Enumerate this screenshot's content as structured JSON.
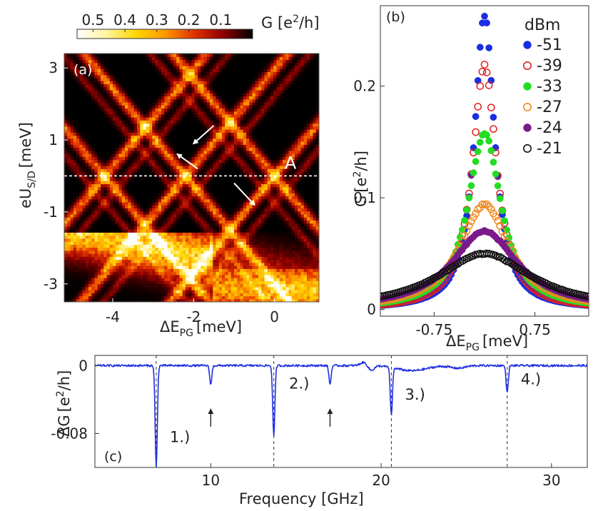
{
  "chart_data": [
    {
      "panel": "(a)",
      "type": "heatmap",
      "xlabel": {
        "main": "ΔE",
        "sub": "PG",
        "unit": "[meV]"
      },
      "ylabel": {
        "main": "eU",
        "sub": "S/D",
        "unit": "[meV]"
      },
      "xlim": [
        -5.2,
        1.1
      ],
      "ylim": [
        -3.5,
        3.4
      ],
      "xticks": [
        -4,
        -2,
        0
      ],
      "xtick_labels": [
        "-4",
        "-2",
        "0"
      ],
      "yticks": [
        3,
        1,
        -1,
        -3
      ],
      "ytick_labels": [
        "3",
        "1",
        "-1",
        "-3"
      ],
      "colorbar": {
        "label": "G [e",
        "label_sup": "2",
        "label_end": "/h]",
        "ticks": [
          0.5,
          0.4,
          0.3,
          0.2,
          0.1
        ],
        "tick_labels": [
          "0.5",
          "0.4",
          "0.3",
          "0.2",
          "0.1"
        ],
        "range": [
          0.55,
          0.0
        ],
        "colormap": [
          "#ffffff",
          "#fff5a0",
          "#ffd700",
          "#ff9a00",
          "#e03000",
          "#900000",
          "#000000"
        ]
      },
      "cut_line_y": 0,
      "annotation": "A",
      "diamond_crossings_x": [
        -4.2,
        -2.2,
        0.0
      ],
      "arrows": [
        {
          "from": [
            -1.5,
            1.4
          ],
          "to": [
            -2.0,
            0.9
          ]
        },
        {
          "from": [
            -1.9,
            0.2
          ],
          "to": [
            -2.4,
            0.6
          ]
        },
        {
          "from": [
            -1.0,
            -0.2
          ],
          "to": [
            -0.5,
            -0.8
          ]
        }
      ]
    },
    {
      "panel": "(b)",
      "type": "scatter",
      "xlabel": {
        "main": "ΔE",
        "sub": "PG",
        "unit": "[meV]"
      },
      "ylabel": {
        "main": "G",
        "unit": "[e",
        "sup": "2",
        "end": "/h]"
      },
      "xlim": [
        -1.55,
        1.55
      ],
      "ylim": [
        -0.006,
        0.272
      ],
      "xticks": [
        -0.75,
        0.75
      ],
      "xtick_labels": [
        "-0.75",
        "0.75"
      ],
      "yticks": [
        0,
        0.1,
        0.2
      ],
      "ytick_labels": [
        "0",
        "0.1",
        "0.2"
      ],
      "legend_title": "dBm",
      "legend_position": "top-right",
      "series": [
        {
          "name": "-51",
          "color": "#1a2fe0",
          "marker": "filled",
          "peak": 0.265,
          "width": 0.18
        },
        {
          "name": "-39",
          "color": "#e02020",
          "marker": "open",
          "peak": 0.218,
          "width": 0.22
        },
        {
          "name": "-33",
          "color": "#22dd22",
          "marker": "filled",
          "peak": 0.158,
          "width": 0.3
        },
        {
          "name": "-27",
          "color": "#f08a20",
          "marker": "open",
          "peak": 0.094,
          "width": 0.45
        },
        {
          "name": "-24",
          "color": "#7a1a8a",
          "marker": "filled",
          "peak": 0.07,
          "width": 0.6
        },
        {
          "name": "-21",
          "color": "#111111",
          "marker": "open",
          "peak": 0.05,
          "width": 0.85
        }
      ]
    },
    {
      "panel": "(c)",
      "type": "line",
      "xlabel": "Frequency [GHz]",
      "ylabel": {
        "main": "ΔG",
        "unit": "[e",
        "sup": "2",
        "end": "/h]"
      },
      "xlim": [
        3.2,
        32.1
      ],
      "ylim": [
        -0.12,
        0.012
      ],
      "xticks": [
        10,
        20,
        30
      ],
      "xtick_labels": [
        "10",
        "20",
        "30"
      ],
      "yticks": [
        0,
        -0.08
      ],
      "ytick_labels": [
        "0",
        "-0.08"
      ],
      "color": "#1f2fe0",
      "baseline": 0.0,
      "dips": [
        {
          "x": 6.8,
          "depth": -0.12
        },
        {
          "x": 10.0,
          "depth": -0.022
        },
        {
          "x": 13.7,
          "depth": -0.082
        },
        {
          "x": 17.0,
          "depth": -0.022
        },
        {
          "x": 20.6,
          "depth": -0.056
        },
        {
          "x": 27.4,
          "depth": -0.032
        }
      ],
      "dashed_lines_x": [
        6.8,
        13.7,
        20.6,
        27.4
      ],
      "labels": [
        {
          "x": 7.6,
          "y": -0.09,
          "text": "1.)"
        },
        {
          "x": 14.6,
          "y": -0.027,
          "text": "2.)"
        },
        {
          "x": 21.4,
          "y": -0.04,
          "text": "3.)"
        },
        {
          "x": 28.2,
          "y": -0.022,
          "text": "4.)"
        }
      ],
      "arrows_x": [
        10.0,
        17.0
      ]
    }
  ]
}
